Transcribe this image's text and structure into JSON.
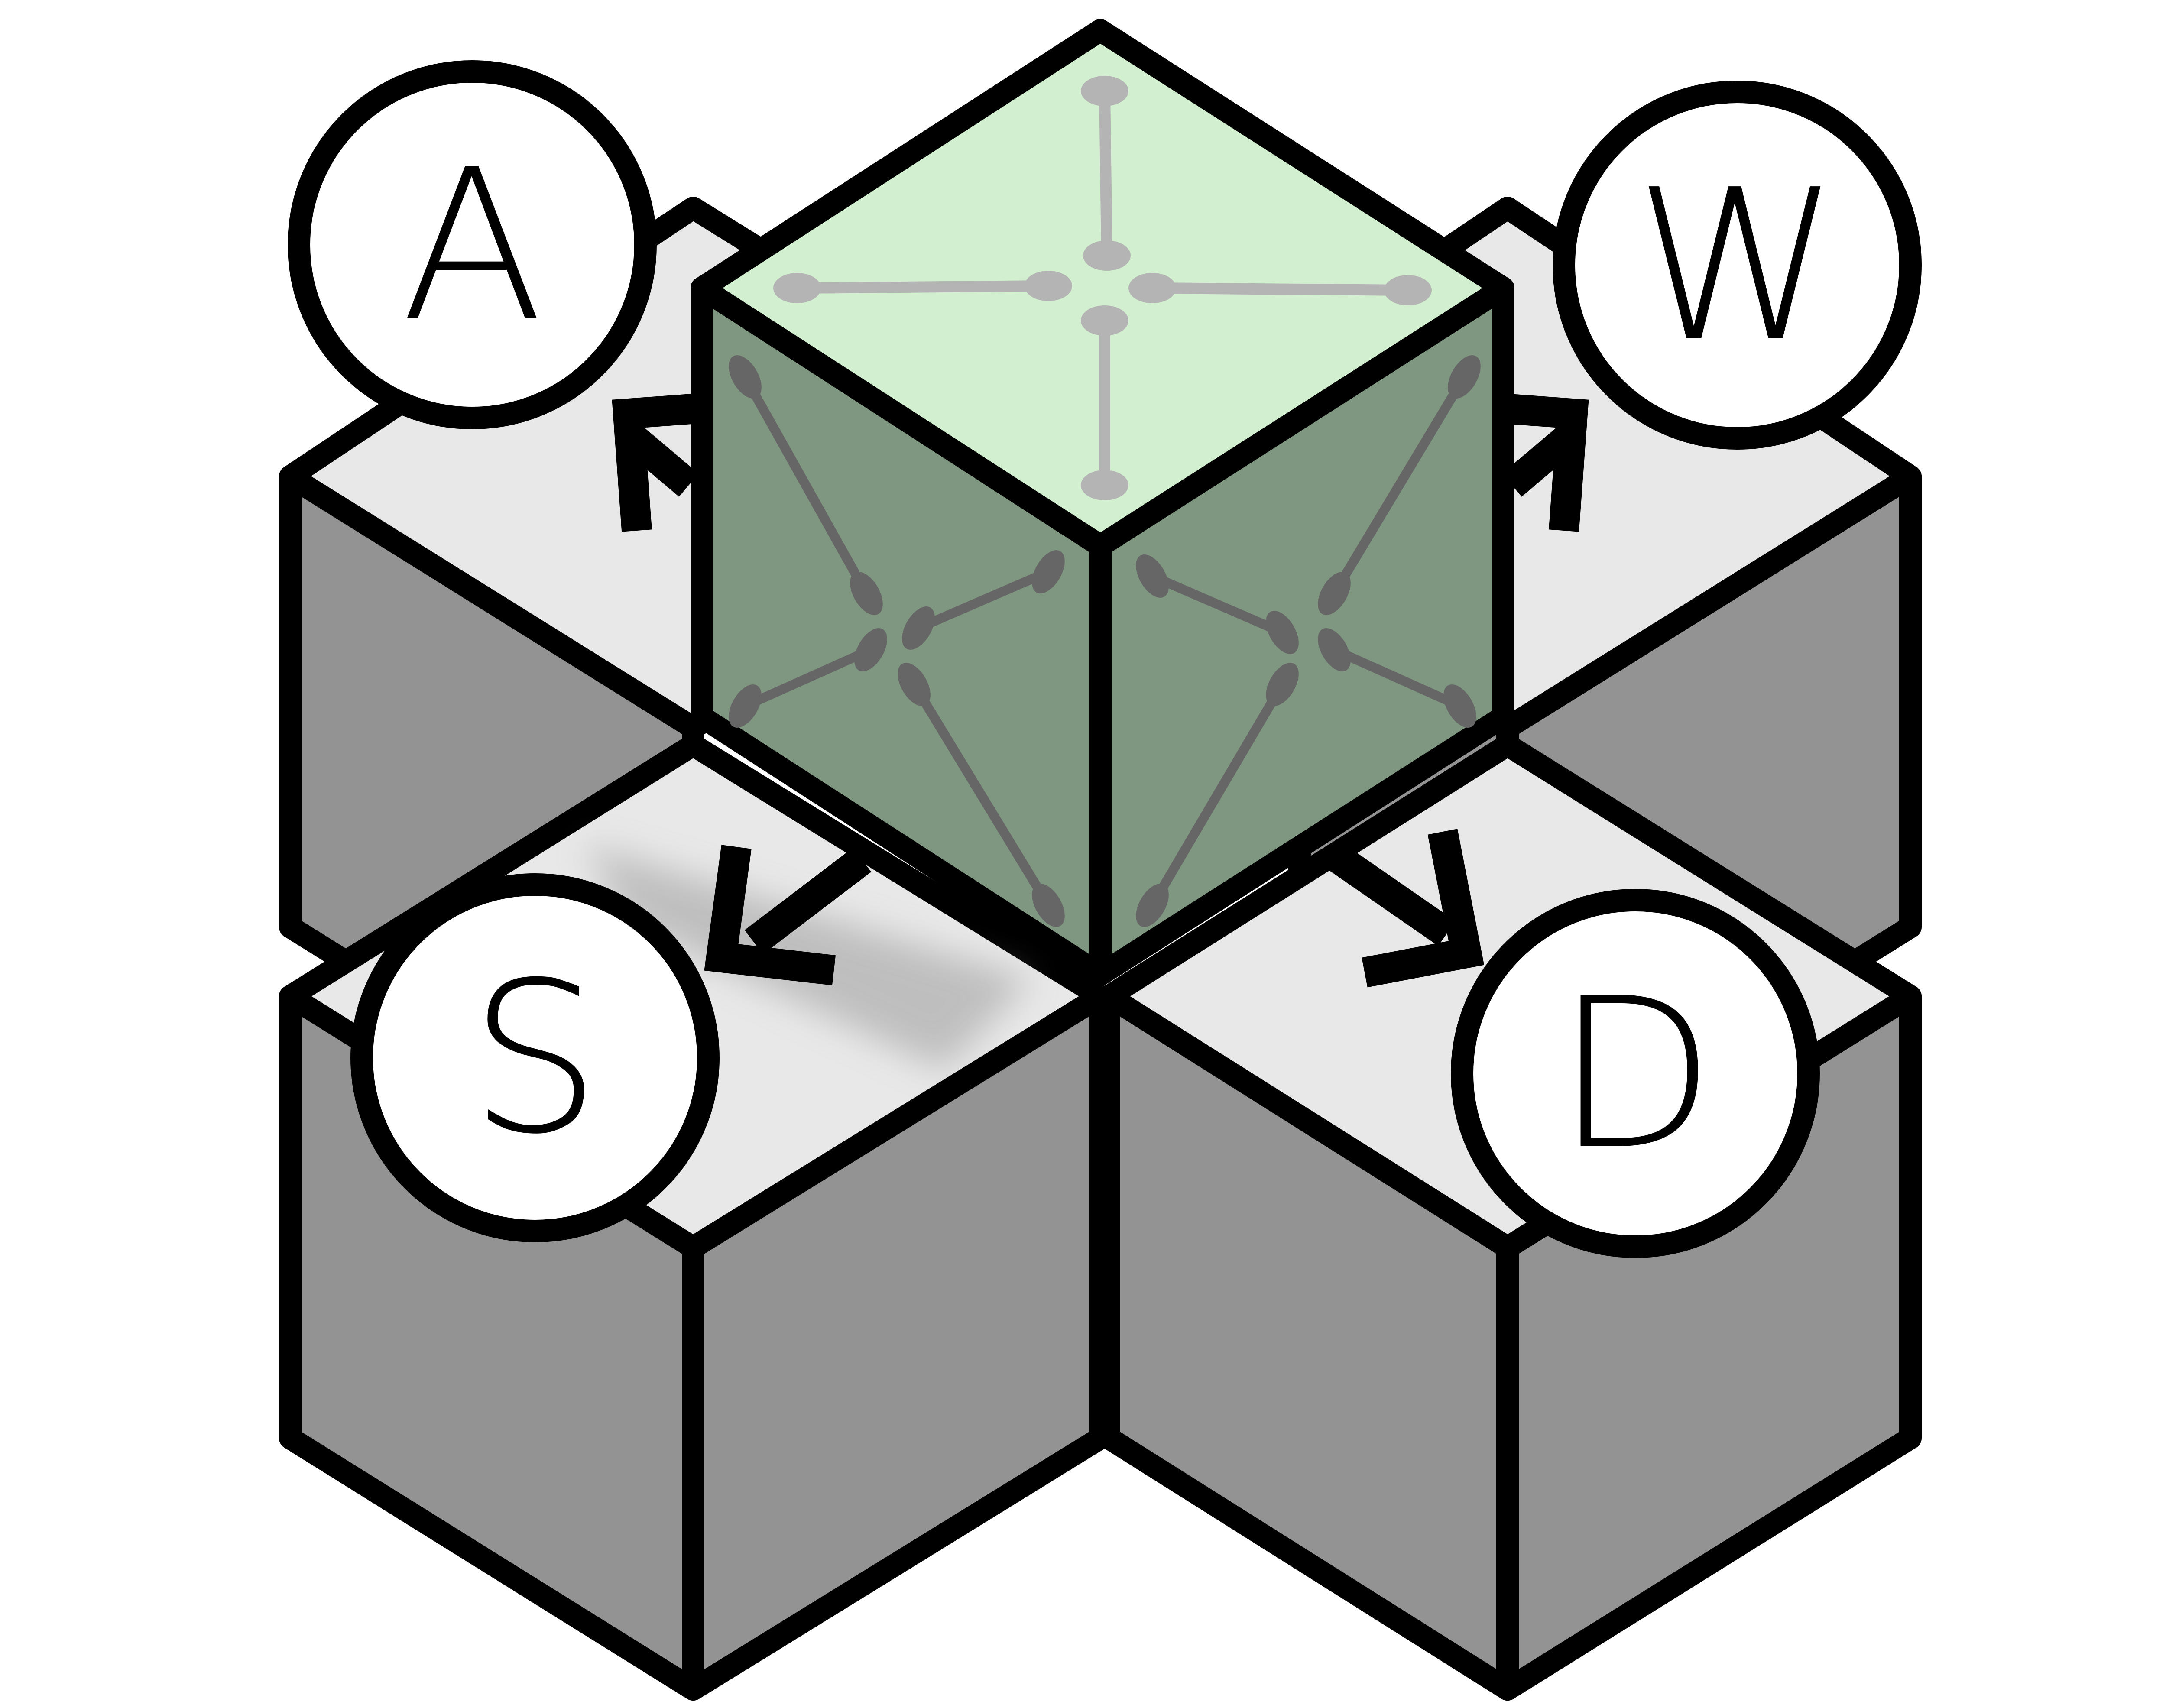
{
  "keys": {
    "up_left": "A",
    "up_right": "W",
    "down_left": "S",
    "down_right": "D"
  },
  "colors": {
    "background": "#ffffff",
    "outline": "#000000",
    "tile_top": "#e8e8e8",
    "tile_side": "#939393",
    "cube_top": "#d2f0d0",
    "cube_side": "#7f9780",
    "cube_pattern_top": "#b4b4b4",
    "cube_pattern_side": "#666666",
    "key_circle": "#ffffff"
  }
}
